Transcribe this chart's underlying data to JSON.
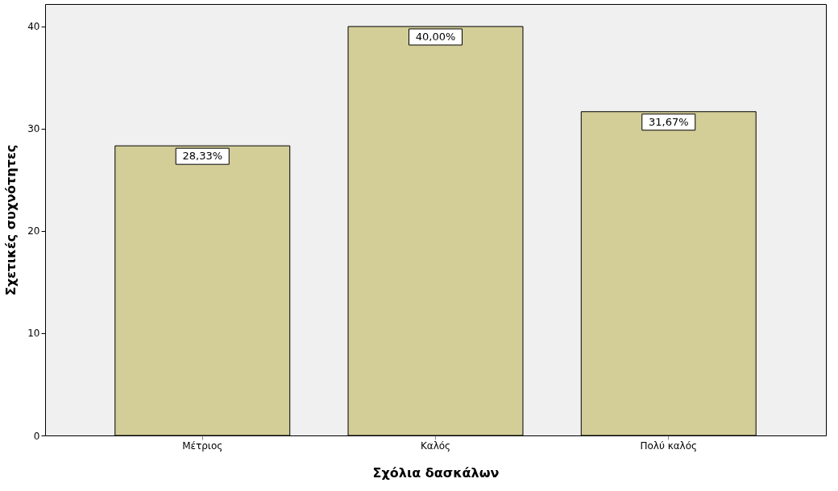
{
  "chart_data": {
    "type": "bar",
    "xlabel": "Σχόλια δασκάλων",
    "ylabel": "Σχετικές συχνότητες",
    "categories": [
      "Μέτριος",
      "Καλός",
      "Πολύ καλός"
    ],
    "values": [
      28.33,
      40.0,
      31.67
    ],
    "value_labels": [
      "28,33%",
      "40,00%",
      "31,67%"
    ],
    "color": "#d3cd98",
    "ylim": [
      0,
      42.2
    ],
    "yticks": [
      0,
      10,
      20,
      30,
      40
    ],
    "grid": false
  }
}
